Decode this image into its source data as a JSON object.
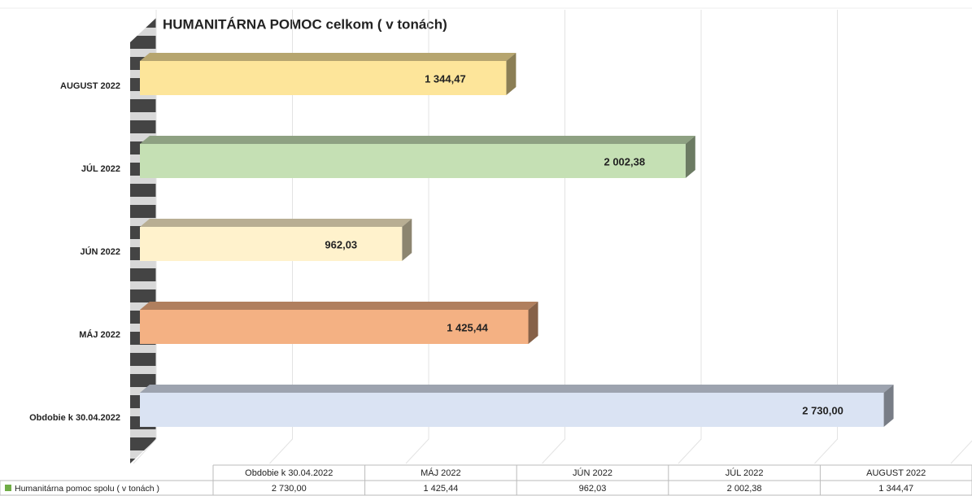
{
  "chart_data": {
    "type": "bar",
    "orientation": "horizontal",
    "title": "HUMANITÁRNA POMOC  celkom ( v tonách)",
    "categories": [
      "Obdobie k 30.04.2022",
      "MÁJ 2022",
      "JÚN 2022",
      "JÚL 2022",
      "AUGUST 2022"
    ],
    "series": [
      {
        "name": "Humanitárna pomoc spolu ( v tonách )",
        "color": "#70ad47",
        "values": [
          2730.0,
          1425.44,
          962.03,
          2002.38,
          1344.47
        ],
        "value_labels": [
          "2 730,00",
          "1 425,44",
          "962,03",
          "2 002,38",
          "1 344,47"
        ],
        "bar_colors": [
          "#dae3f3",
          "#f4b183",
          "#fff2cc",
          "#c5e0b4",
          "#fde59a"
        ]
      }
    ],
    "xlim": [
      0,
      3000
    ],
    "xticks": [
      0,
      500,
      1000,
      1500,
      2000,
      2500,
      3000
    ],
    "grid": true,
    "data_table": true
  }
}
